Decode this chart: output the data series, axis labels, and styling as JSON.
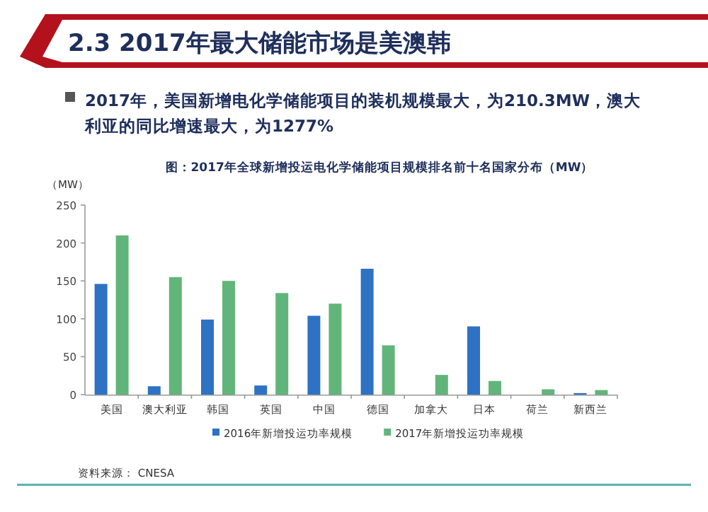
{
  "chart_data": {
    "type": "bar",
    "title": "2.3 2017年最大储能市场是美澳韩",
    "subtitle": "2017年，美国新增电化学储能项目的装机规模最大，为210.3MW，澳大利亚的同比增速最大，为1277%",
    "annotations": [
      "图：2017年全球新增投运电化学储能项目规模排名前十名国家分布（MW）",
      "资料来源： CNESA"
    ],
    "ylabel": "（MW）",
    "categories": [
      "美国",
      "澳大利亚",
      "韩国",
      "英国",
      "中国",
      "德国",
      "加拿大",
      "日本",
      "荷兰",
      "新西兰"
    ],
    "series": [
      {
        "name": "2016年新增投运功率规模",
        "color": "#2e72c4",
        "values": [
          146,
          11,
          99,
          12,
          104,
          166,
          null,
          90,
          null,
          2
        ]
      },
      {
        "name": "2017年新增投运功率规模",
        "color": "#62b57a",
        "values": [
          210,
          155,
          150,
          134,
          120,
          65,
          26,
          18,
          7,
          6
        ]
      }
    ],
    "ylim": [
      0,
      250
    ],
    "yticks": [
      0,
      50,
      100,
      150,
      200,
      250
    ],
    "grid": false,
    "legend": "bottom"
  }
}
